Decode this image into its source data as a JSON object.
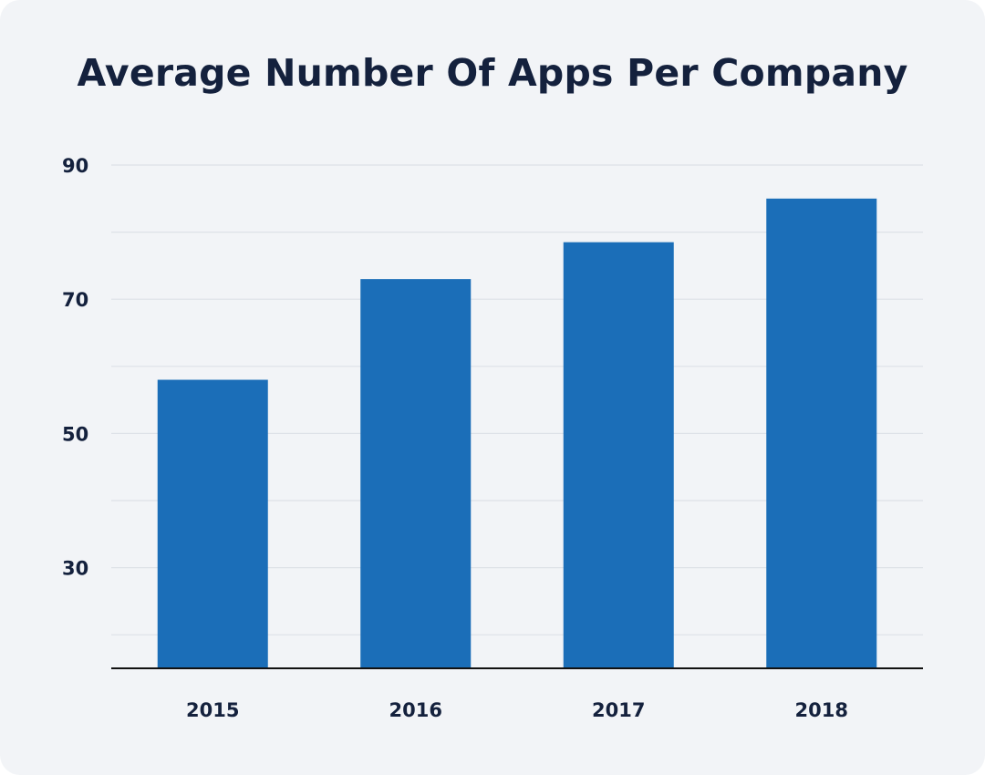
{
  "chart_data": {
    "type": "bar",
    "title": "Average Number Of Apps Per Company",
    "xlabel": "",
    "ylabel": "",
    "categories": [
      "2015",
      "2016",
      "2017",
      "2018"
    ],
    "values": [
      58,
      73,
      78.5,
      85
    ],
    "ylim": [
      15,
      90
    ],
    "yticks": [
      30,
      50,
      70,
      90
    ],
    "minor_gridlines": [
      20,
      40,
      60,
      80
    ],
    "grid": true,
    "legend": "none",
    "bar_color": "#1b6eb8",
    "grid_color": "#dde1e7",
    "axis_color": "#111111",
    "background_color": "#f2f4f7"
  }
}
